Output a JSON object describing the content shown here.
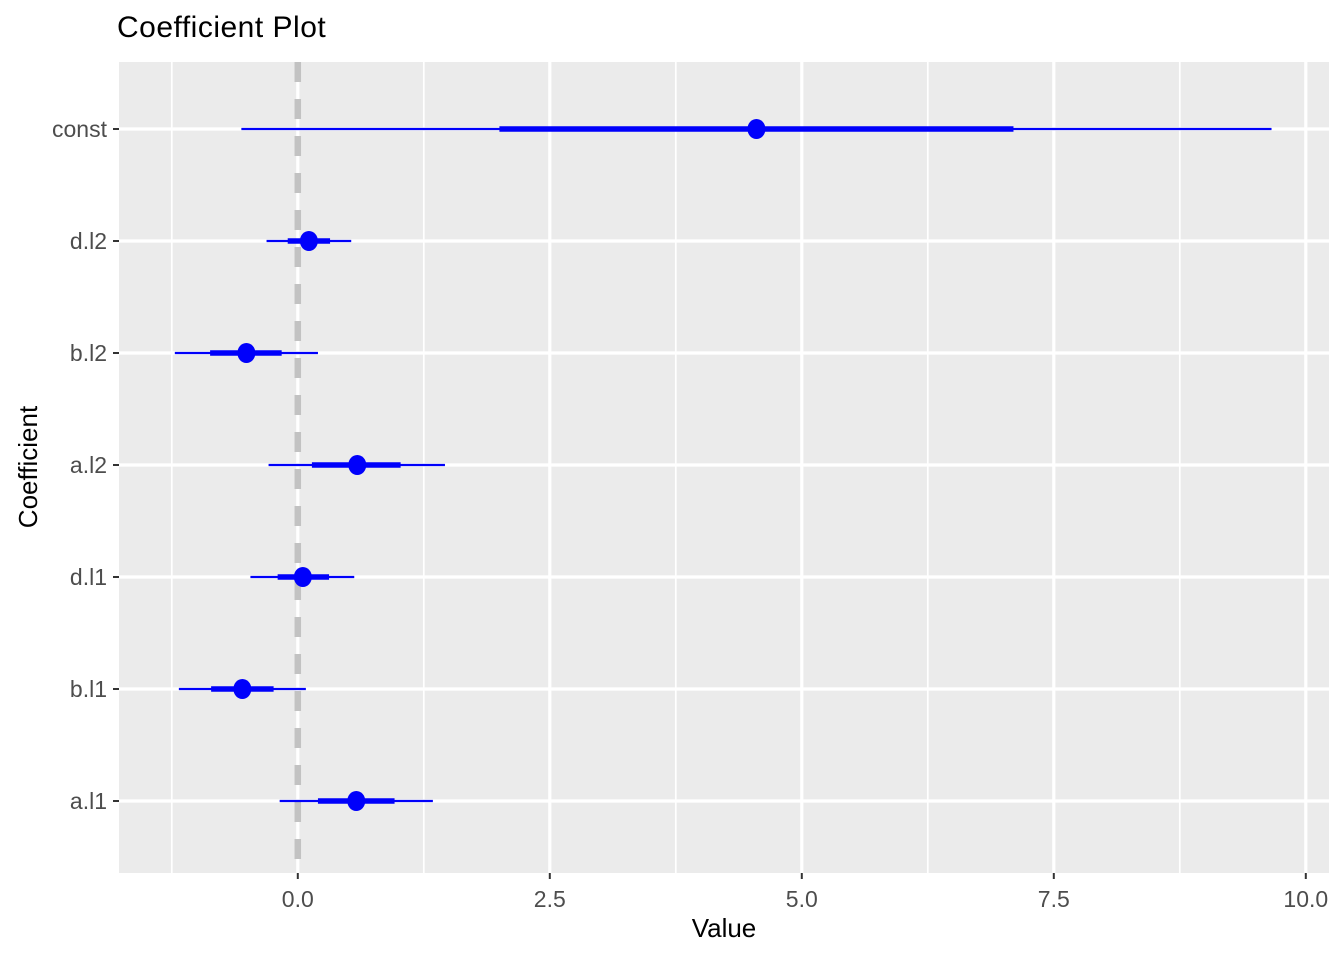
{
  "chart_data": {
    "type": "scatter",
    "variant": "coefficient-dot-whisker",
    "title": "Coefficient Plot",
    "xlabel": "Value",
    "ylabel": "Coefficient",
    "legend": "none",
    "grid": "on",
    "panel_background": "#EBEBEB",
    "categories": [
      "const",
      "d.l2",
      "b.l2",
      "a.l2",
      "d.l1",
      "b.l1",
      "a.l1"
    ],
    "points": [
      {
        "label": "const",
        "estimate": 4.55,
        "inner_low": 2.0,
        "inner_high": 7.1,
        "outer_low": -0.56,
        "outer_high": 9.66
      },
      {
        "label": "d.l2",
        "estimate": 0.11,
        "inner_low": -0.1,
        "inner_high": 0.32,
        "outer_low": -0.31,
        "outer_high": 0.53
      },
      {
        "label": "b.l2",
        "estimate": -0.51,
        "inner_low": -0.87,
        "inner_high": -0.16,
        "outer_low": -1.22,
        "outer_high": 0.2
      },
      {
        "label": "a.l2",
        "estimate": 0.59,
        "inner_low": 0.14,
        "inner_high": 1.02,
        "outer_low": -0.29,
        "outer_high": 1.46
      },
      {
        "label": "d.l1",
        "estimate": 0.05,
        "inner_low": -0.2,
        "inner_high": 0.31,
        "outer_low": -0.47,
        "outer_high": 0.56
      },
      {
        "label": "b.l1",
        "estimate": -0.55,
        "inner_low": -0.86,
        "inner_high": -0.24,
        "outer_low": -1.18,
        "outer_high": 0.08
      },
      {
        "label": "a.l1",
        "estimate": 0.58,
        "inner_low": 0.2,
        "inner_high": 0.96,
        "outer_low": -0.18,
        "outer_high": 1.34
      }
    ],
    "x_ticks": [
      {
        "value": 0,
        "label": "0.0"
      },
      {
        "value": 2.5,
        "label": "2.5"
      },
      {
        "value": 5,
        "label": "5.0"
      },
      {
        "value": 7.5,
        "label": "7.5"
      },
      {
        "value": 10,
        "label": "10.0"
      }
    ],
    "x_minor_gridlines": [
      -1.25,
      1.25,
      3.75,
      6.25,
      8.75
    ],
    "xlim": [
      -1.78,
      10.23
    ],
    "reference_line": {
      "x": 0,
      "style": "dashed",
      "color": "#C2C2C2"
    },
    "colors": {
      "point": "#0000FB",
      "ci_line": "#0000FB",
      "panel_bg": "#EBEBEB",
      "gridline": "#FFFFFF",
      "tick_mark": "#333333",
      "tick_label": "#4D4D4D",
      "title_text": "#000000"
    }
  }
}
